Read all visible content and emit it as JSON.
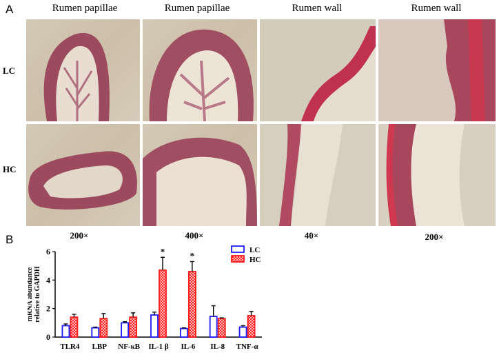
{
  "panel_a": {
    "letter": "A",
    "columns": [
      "Rumen papillae",
      "Rumen papillae",
      "Rumen wall",
      "Rumen wall"
    ],
    "rows": [
      "LC",
      "HC"
    ],
    "magnifications": [
      "200×",
      "400×",
      "40×",
      "200×"
    ],
    "image_colors": {
      "tissue": "#9c4a5e",
      "epithelium": "#c03050",
      "background": "#cfc4ae"
    }
  },
  "panel_b": {
    "letter": "B"
  },
  "chart_data": {
    "type": "bar",
    "categories": [
      "TLR4",
      "LBP",
      "NF-κB",
      "IL-1 β",
      "IL-6",
      "IL-8",
      "TNF-α"
    ],
    "series": [
      {
        "name": "LC",
        "values": [
          0.8,
          0.65,
          1.0,
          1.55,
          0.6,
          1.45,
          0.7
        ],
        "errors": [
          0.12,
          0.05,
          0.08,
          0.2,
          0.05,
          0.75,
          0.1
        ],
        "color": "#1a1aff",
        "fill": "#ffffff"
      },
      {
        "name": "HC",
        "values": [
          1.4,
          1.3,
          1.4,
          4.7,
          4.6,
          1.3,
          1.5
        ],
        "errors": [
          0.2,
          0.35,
          0.3,
          0.9,
          0.7,
          0.05,
          0.3
        ],
        "color": "#ff1a1a",
        "fill": "hatched"
      }
    ],
    "significance": [
      "",
      "",
      "",
      "*",
      "*",
      "",
      ""
    ],
    "ylabel": [
      "mRNA abundance",
      "relative to GAPDH"
    ],
    "ylim": [
      0,
      6
    ],
    "yticks": [
      "0",
      "2",
      "4",
      "6"
    ],
    "grid": false,
    "legend_position": "top-right"
  }
}
